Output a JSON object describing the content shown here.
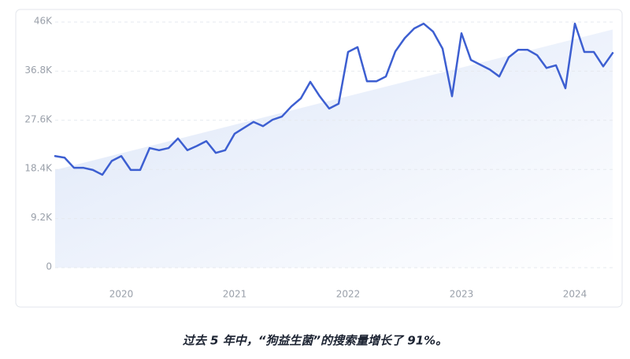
{
  "chart_data": {
    "type": "line",
    "caption": "过去 5 年中，“狗益生菌”的搜索量增长了 91%。",
    "categories": [
      null,
      null,
      null,
      null,
      null,
      null,
      null,
      "2020",
      null,
      null,
      null,
      null,
      null,
      null,
      null,
      null,
      null,
      null,
      null,
      "2021",
      null,
      null,
      null,
      null,
      null,
      null,
      null,
      null,
      null,
      null,
      null,
      "2022",
      null,
      null,
      null,
      null,
      null,
      null,
      null,
      null,
      null,
      null,
      null,
      "2023",
      null,
      null,
      null,
      null,
      null,
      null,
      null,
      null,
      null,
      null,
      null,
      "2024",
      null,
      null,
      null,
      null
    ],
    "series": [
      {
        "color": "#3d5fd1",
        "values": [
          20900,
          20600,
          18700,
          18700,
          18300,
          17400,
          20000,
          20900,
          18300,
          18300,
          22400,
          22000,
          22400,
          24200,
          22000,
          22800,
          23700,
          21500,
          22000,
          25100,
          26200,
          27300,
          26500,
          27700,
          28300,
          30200,
          31700,
          34800,
          32100,
          29800,
          30700,
          40400,
          41300,
          34900,
          34900,
          35800,
          40500,
          43000,
          44800,
          45700,
          44200,
          41000,
          32100,
          43900,
          38900,
          38000,
          37100,
          35800,
          39400,
          40800,
          40800,
          39800,
          37400,
          37900,
          33600,
          45700,
          40400,
          40400,
          37700,
          40200
        ]
      }
    ],
    "trend": {
      "color": "#dfe8f8",
      "values": [
        18300,
        44600
      ]
    },
    "ylim": [
      0,
      46000
    ],
    "yticks": [
      0,
      {
        "value": 9200,
        "label": "9.2K"
      },
      {
        "value": 18400,
        "label": "18.4K"
      },
      {
        "value": 27600,
        "label": "27.6K"
      },
      {
        "value": 36800,
        "label": "36.8K"
      },
      {
        "value": 46000,
        "label": "46K"
      }
    ],
    "grid": true
  }
}
